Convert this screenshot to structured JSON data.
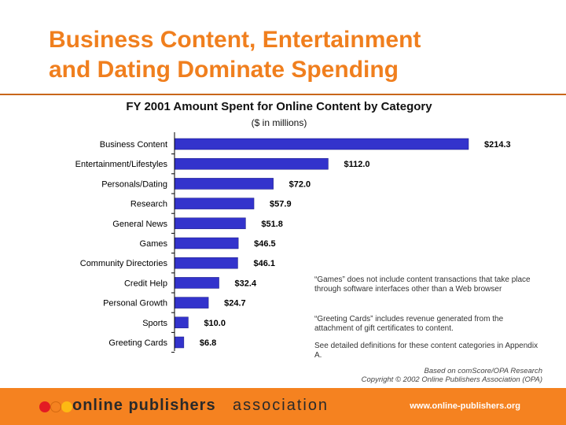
{
  "slide": {
    "title_line1": "Business Content, Entertainment",
    "title_line2": "and Dating Dominate Spending"
  },
  "chart_data": {
    "type": "bar",
    "orientation": "horizontal",
    "title": "FY 2001 Amount Spent for Online Content by Category",
    "subtitle": "($ in millions)",
    "categories": [
      "Business Content",
      "Entertainment/Lifestyles",
      "Personals/Dating",
      "Research",
      "General News",
      "Games",
      "Community Directories",
      "Credit Help",
      "Personal Growth",
      "Sports",
      "Greeting Cards"
    ],
    "values": [
      214.3,
      112.0,
      72.0,
      57.9,
      51.8,
      46.5,
      46.1,
      32.4,
      24.7,
      10.0,
      6.8
    ],
    "value_labels": [
      "$214.3",
      "$112.0",
      "$72.0",
      "$57.9",
      "$51.8",
      "$46.5",
      "$46.1",
      "$32.4",
      "$24.7",
      "$10.0",
      "$6.8"
    ],
    "bar_color": "#3333CC",
    "grid": false,
    "legend": "none"
  },
  "notes": [
    "“Games” does not include content transactions that take place through software interfaces other than a Web browser",
    "“Greeting Cards” includes revenue generated from the attachment of gift certificates to content.",
    "See detailed definitions for these content categories in Appendix A."
  ],
  "source": {
    "line1": "Based on comScore/OPA Research",
    "line2": "Copyright © 2002 Online Publishers Association (OPA)"
  },
  "footer": {
    "logo_bold": "online publishers",
    "logo_light": "association",
    "url": "www.online-publishers.org"
  },
  "colors": {
    "title": "#F07F1E",
    "footer_bg": "#F58220",
    "dot_1": "#E31B23",
    "dot_2": "#F58220",
    "dot_3": "#FDB913"
  }
}
